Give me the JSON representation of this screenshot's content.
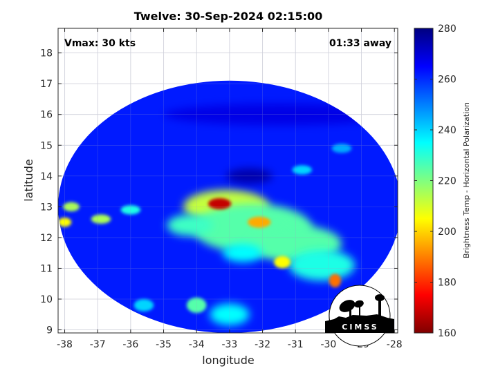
{
  "chart_data": {
    "type": "heatmap",
    "title": "Twelve: 30-Sep-2024 02:15:00",
    "xlabel": "longitude",
    "ylabel": "latitude",
    "xlim": [
      -38.2,
      -27.9
    ],
    "ylim": [
      8.9,
      18.8
    ],
    "xticks": [
      -38,
      -37,
      -36,
      -35,
      -34,
      -33,
      -32,
      -31,
      -30,
      -29,
      -28
    ],
    "yticks": [
      9,
      10,
      11,
      12,
      13,
      14,
      15,
      16,
      17,
      18
    ],
    "grid": true,
    "annotations": {
      "vmax": "Vmax: 30 kts",
      "away": "01:33 away"
    },
    "colorbar": {
      "label": "Brightness Temp - Horizontal Polarization",
      "min": 160,
      "max": 280,
      "ticks": [
        160,
        180,
        200,
        220,
        240,
        260,
        280
      ],
      "colormap": "jet"
    },
    "swath": {
      "center_lon": -33.0,
      "center_lat": 13.0,
      "edge_lon_west": -38.2,
      "edge_lat_south": 8.9
    },
    "background_temp": 262,
    "features": [
      {
        "lon": -33.3,
        "lat": 13.1,
        "temp": 168,
        "rx": 0.35,
        "ry": 0.18
      },
      {
        "lon": -33.1,
        "lat": 13.0,
        "temp": 212,
        "rx": 1.3,
        "ry": 0.55
      },
      {
        "lon": -32.1,
        "lat": 12.5,
        "temp": 195,
        "rx": 0.35,
        "ry": 0.18
      },
      {
        "lon": -32.3,
        "lat": 12.3,
        "temp": 225,
        "rx": 1.8,
        "ry": 0.8
      },
      {
        "lon": -31.0,
        "lat": 11.8,
        "temp": 225,
        "rx": 1.4,
        "ry": 0.6
      },
      {
        "lon": -30.2,
        "lat": 11.1,
        "temp": 232,
        "rx": 1.0,
        "ry": 0.5
      },
      {
        "lon": -29.8,
        "lat": 10.6,
        "temp": 188,
        "rx": 0.18,
        "ry": 0.22
      },
      {
        "lon": -31.4,
        "lat": 11.2,
        "temp": 205,
        "rx": 0.25,
        "ry": 0.2
      },
      {
        "lon": -32.6,
        "lat": 11.5,
        "temp": 235,
        "rx": 0.6,
        "ry": 0.3
      },
      {
        "lon": -34.2,
        "lat": 12.4,
        "temp": 228,
        "rx": 0.7,
        "ry": 0.35
      },
      {
        "lon": -37.8,
        "lat": 13.0,
        "temp": 215,
        "rx": 0.25,
        "ry": 0.15
      },
      {
        "lon": -38.0,
        "lat": 12.5,
        "temp": 205,
        "rx": 0.2,
        "ry": 0.15
      },
      {
        "lon": -36.9,
        "lat": 12.6,
        "temp": 215,
        "rx": 0.3,
        "ry": 0.15
      },
      {
        "lon": -36.0,
        "lat": 12.9,
        "temp": 232,
        "rx": 0.3,
        "ry": 0.15
      },
      {
        "lon": -34.0,
        "lat": 9.8,
        "temp": 225,
        "rx": 0.3,
        "ry": 0.25
      },
      {
        "lon": -33.0,
        "lat": 9.5,
        "temp": 235,
        "rx": 0.6,
        "ry": 0.35
      },
      {
        "lon": -35.6,
        "lat": 9.8,
        "temp": 240,
        "rx": 0.3,
        "ry": 0.2
      },
      {
        "lon": -30.8,
        "lat": 14.2,
        "temp": 240,
        "rx": 0.3,
        "ry": 0.15
      },
      {
        "lon": -29.6,
        "lat": 14.9,
        "temp": 245,
        "rx": 0.3,
        "ry": 0.15
      },
      {
        "lon": -32.4,
        "lat": 14.0,
        "temp": 275,
        "rx": 0.7,
        "ry": 0.25
      },
      {
        "lon": -31.5,
        "lat": 16.0,
        "temp": 268,
        "rx": 3.5,
        "ry": 0.35
      }
    ]
  }
}
